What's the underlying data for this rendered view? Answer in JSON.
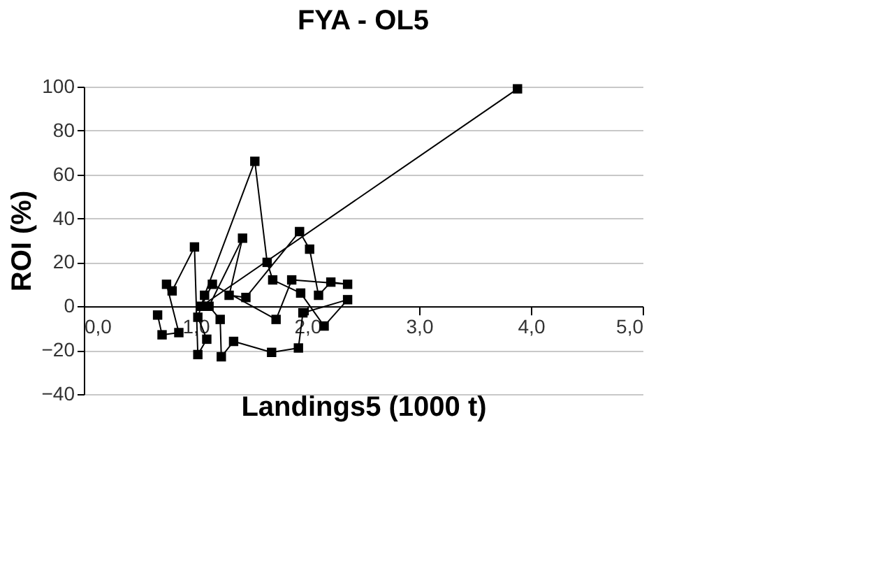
{
  "chart_data": {
    "type": "line",
    "title": "FYA - OL5",
    "xlabel": "Landings5 (1000 t)",
    "ylabel": "ROI (%)",
    "x": [
      0.66,
      0.7,
      0.85,
      0.74,
      0.79,
      0.99,
      1.02,
      1.1,
      1.02,
      1.08,
      1.53,
      1.64,
      1.69,
      1.94,
      2.15,
      2.36,
      1.96,
      1.92,
      1.68,
      1.34,
      1.23,
      1.22,
      1.12,
      1.42,
      1.3,
      1.45,
      1.93,
      2.02,
      2.1,
      2.21,
      2.36,
      1.86,
      1.72,
      1.15,
      1.05,
      3.88
    ],
    "series": [
      {
        "color": "#000000",
        "values": [
          -4,
          -13,
          -12,
          10,
          7,
          27,
          -22,
          -15,
          -5,
          5,
          66,
          20,
          12,
          6,
          -9,
          3,
          -3,
          -19,
          -21,
          -16,
          -23,
          -6,
          0,
          31,
          5,
          4,
          34,
          26,
          5,
          11,
          10,
          12,
          -6,
          10,
          0,
          99
        ]
      }
    ],
    "marker": "square",
    "line_style": "solid",
    "xlim": [
      0,
      5
    ],
    "xticks": [
      {
        "value": 0,
        "label": "0,0"
      },
      {
        "value": 1,
        "label": "1,0"
      },
      {
        "value": 2,
        "label": "2,0"
      },
      {
        "value": 3,
        "label": "3,0"
      },
      {
        "value": 4,
        "label": "4,0"
      },
      {
        "value": 5,
        "label": "5,0"
      }
    ],
    "ylim": [
      -40,
      100
    ],
    "yticks": [
      -40,
      -20,
      0,
      20,
      40,
      60,
      80,
      100
    ],
    "grid": "y"
  }
}
